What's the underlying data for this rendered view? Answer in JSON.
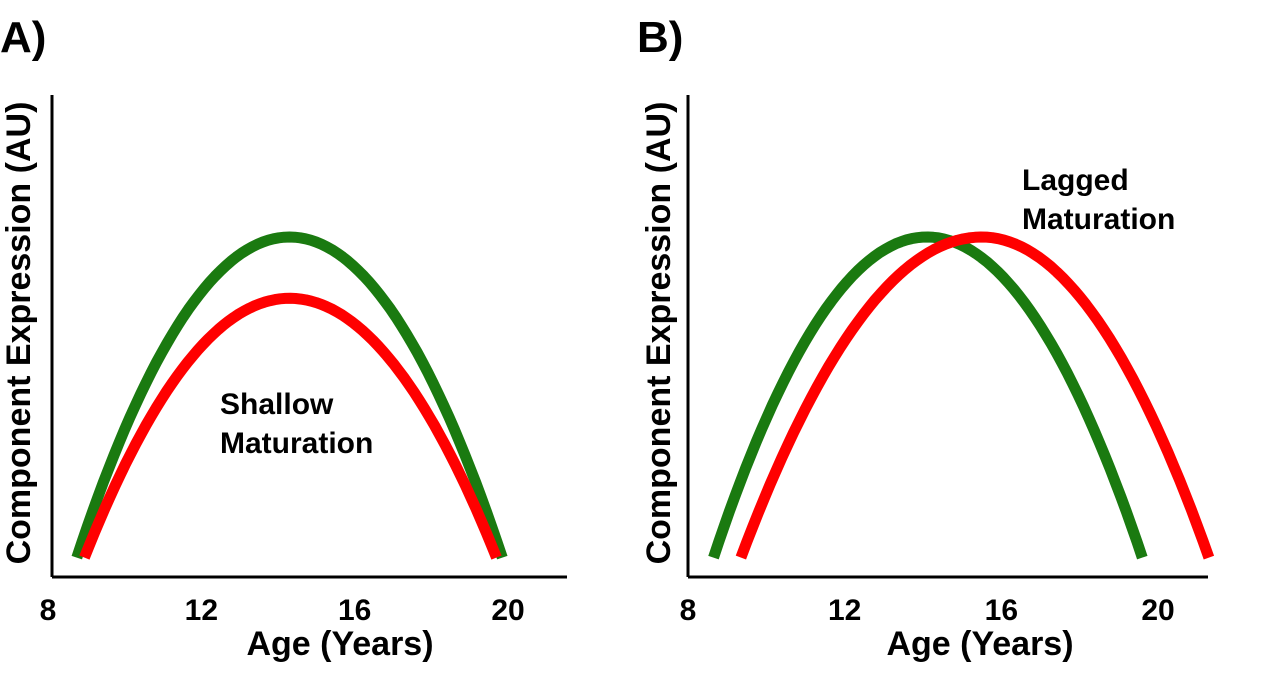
{
  "chart_data": [
    {
      "panel_label": "A)",
      "type": "line",
      "xlabel": "Age (Years)",
      "ylabel": "Component Expression (AU)",
      "xticks": [
        8,
        12,
        16,
        20
      ],
      "xlim": [
        8,
        20.8
      ],
      "ylim": [
        0,
        1
      ],
      "annotation": [
        "Shallow",
        "Maturation"
      ],
      "series": [
        {
          "color": "#1a7a10",
          "peak_x": 14.3,
          "peak_y": 0.7,
          "x_start": 8.75,
          "x_end": 19.85,
          "end_y": 0.02
        },
        {
          "color": "#ff0000",
          "peak_x": 14.3,
          "peak_y": 0.57,
          "x_start": 8.95,
          "x_end": 19.7,
          "end_y": 0.02
        }
      ]
    },
    {
      "panel_label": "B)",
      "type": "line",
      "xlabel": "Age (Years)",
      "ylabel": "Component Expression (AU)",
      "xticks": [
        8,
        12,
        16,
        20
      ],
      "xlim": [
        8,
        20.8
      ],
      "ylim": [
        0,
        1
      ],
      "annotation": [
        "Lagged",
        "Maturation"
      ],
      "series": [
        {
          "color": "#1a7a10",
          "peak_x": 14.1,
          "peak_y": 0.7,
          "x_start": 8.65,
          "x_end": 19.6,
          "end_y": 0.02
        },
        {
          "color": "#ff0000",
          "peak_x": 15.5,
          "peak_y": 0.7,
          "x_start": 9.35,
          "x_end": 21.3,
          "end_y": 0.02
        }
      ]
    }
  ]
}
